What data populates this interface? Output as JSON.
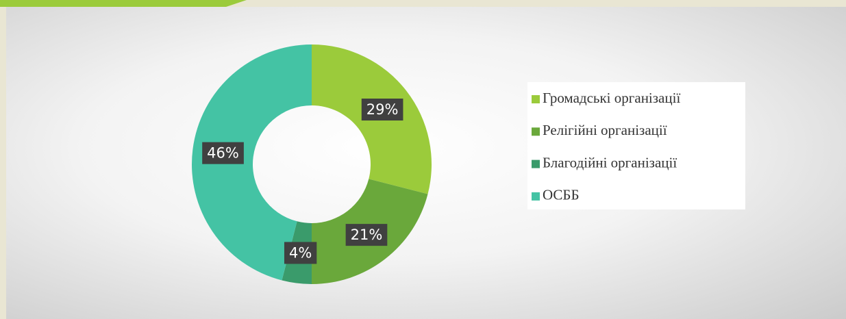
{
  "chart_data": {
    "type": "donut",
    "categories": [
      "Громадські організації",
      "Релігійні організації",
      "Благодійні організації",
      "ОСББ"
    ],
    "values": [
      29,
      21,
      4,
      46
    ],
    "value_labels": [
      "29%",
      "21%",
      "4%",
      "46%"
    ],
    "colors": [
      "#9bcb3b",
      "#6aa83b",
      "#3a9b6b",
      "#44c3a4"
    ],
    "legend": "right"
  }
}
